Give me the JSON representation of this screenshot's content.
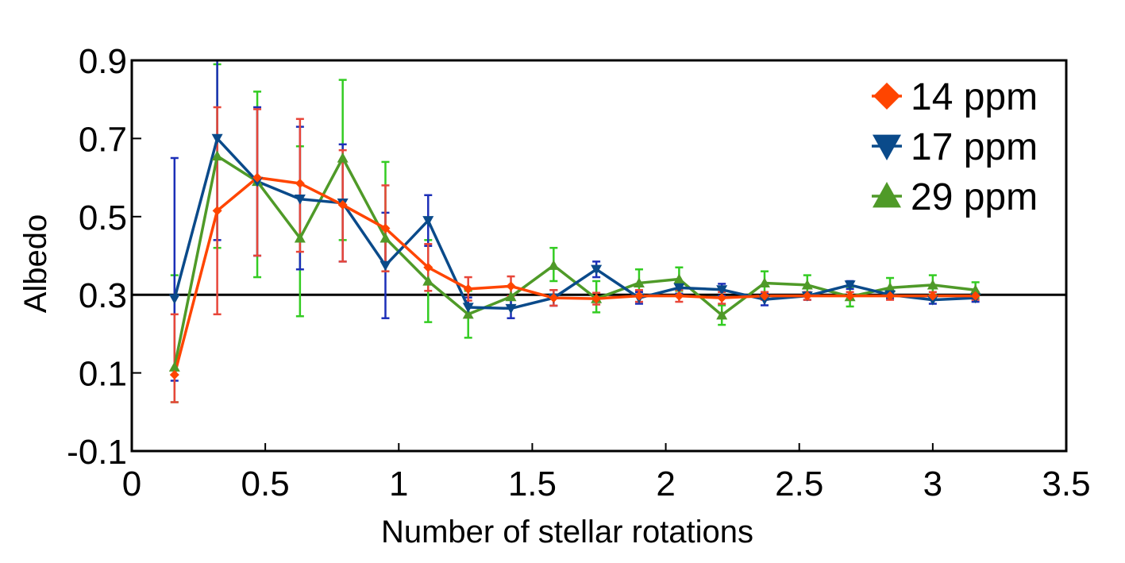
{
  "chart_data": {
    "type": "line",
    "title": "",
    "xlabel": "Number of stellar rotations",
    "ylabel": "Albedo",
    "xlim": [
      0,
      3.5
    ],
    "ylim": [
      -0.1,
      0.9
    ],
    "xticks": [
      "0",
      "0.5",
      "1",
      "1.5",
      "2",
      "2.5",
      "3",
      "3.5"
    ],
    "xtick_values": [
      0,
      0.5,
      1,
      1.5,
      2,
      2.5,
      3,
      3.5
    ],
    "yticks": [
      "0.9",
      "0.7",
      "0.5",
      "0.3",
      "0.1",
      "-0.1"
    ],
    "ytick_values": [
      0.9,
      0.7,
      0.5,
      0.3,
      0.1,
      -0.1
    ],
    "reference_line": 0.3,
    "legend_position": "top-right",
    "x": [
      0.16,
      0.32,
      0.47,
      0.63,
      0.79,
      0.95,
      1.11,
      1.26,
      1.42,
      1.58,
      1.74,
      1.9,
      2.05,
      2.21,
      2.37,
      2.53,
      2.69,
      2.84,
      3.0,
      3.16
    ],
    "series": [
      {
        "name": "14 ppm",
        "color": "#ff4500",
        "error_color": "#e8463a",
        "marker": "diamond",
        "values": [
          0.095,
          0.515,
          0.6,
          0.585,
          0.53,
          0.47,
          0.37,
          0.315,
          0.322,
          0.292,
          0.29,
          0.297,
          0.297,
          0.292,
          0.297,
          0.297,
          0.297,
          0.297,
          0.297,
          0.297
        ],
        "err_low": [
          0.07,
          0.265,
          0.2,
          0.175,
          0.145,
          0.11,
          0.06,
          0.03,
          0.025,
          0.02,
          0.015,
          0.015,
          0.015,
          0.015,
          0.01,
          0.01,
          0.01,
          0.01,
          0.01,
          0.01
        ],
        "err_high": [
          0.155,
          0.265,
          0.175,
          0.165,
          0.14,
          0.11,
          0.06,
          0.03,
          0.025,
          0.02,
          0.015,
          0.015,
          0.015,
          0.015,
          0.01,
          0.01,
          0.01,
          0.01,
          0.01,
          0.01
        ]
      },
      {
        "name": "17 ppm",
        "color": "#0a4a8a",
        "error_color": "#1c2fb8",
        "marker": "triangle-down",
        "values": [
          0.29,
          0.7,
          0.59,
          0.545,
          0.535,
          0.375,
          0.49,
          0.268,
          0.265,
          0.292,
          0.365,
          0.292,
          0.318,
          0.313,
          0.288,
          0.297,
          0.325,
          0.3,
          0.287,
          0.292
        ],
        "err_low": [
          0.21,
          0.26,
          0.19,
          0.18,
          0.15,
          0.135,
          0.065,
          0.025,
          0.025,
          0.02,
          0.02,
          0.015,
          0.015,
          0.015,
          0.015,
          0.01,
          0.01,
          0.01,
          0.01,
          0.01
        ],
        "err_high": [
          0.36,
          0.2,
          0.19,
          0.185,
          0.15,
          0.135,
          0.065,
          0.025,
          0.025,
          0.02,
          0.02,
          0.015,
          0.015,
          0.015,
          0.015,
          0.01,
          0.01,
          0.01,
          0.01,
          0.01
        ]
      },
      {
        "name": "29 ppm",
        "color": "#4f9a28",
        "error_color": "#33cc22",
        "marker": "triangle-up",
        "values": [
          0.115,
          0.655,
          0.59,
          0.445,
          0.65,
          0.445,
          0.335,
          0.25,
          0.295,
          0.375,
          0.29,
          0.33,
          0.34,
          0.248,
          0.33,
          0.325,
          0.295,
          0.318,
          0.325,
          0.312
        ],
        "err_low": [
          0.09,
          0.235,
          0.245,
          0.2,
          0.21,
          0.085,
          0.105,
          0.06,
          0.025,
          0.04,
          0.035,
          0.03,
          0.03,
          0.025,
          0.03,
          0.025,
          0.025,
          0.025,
          0.025,
          0.02
        ],
        "err_high": [
          0.235,
          0.235,
          0.23,
          0.235,
          0.2,
          0.195,
          0.105,
          0.06,
          0.025,
          0.045,
          0.045,
          0.035,
          0.03,
          0.025,
          0.03,
          0.025,
          0.025,
          0.025,
          0.025,
          0.02
        ]
      }
    ]
  }
}
